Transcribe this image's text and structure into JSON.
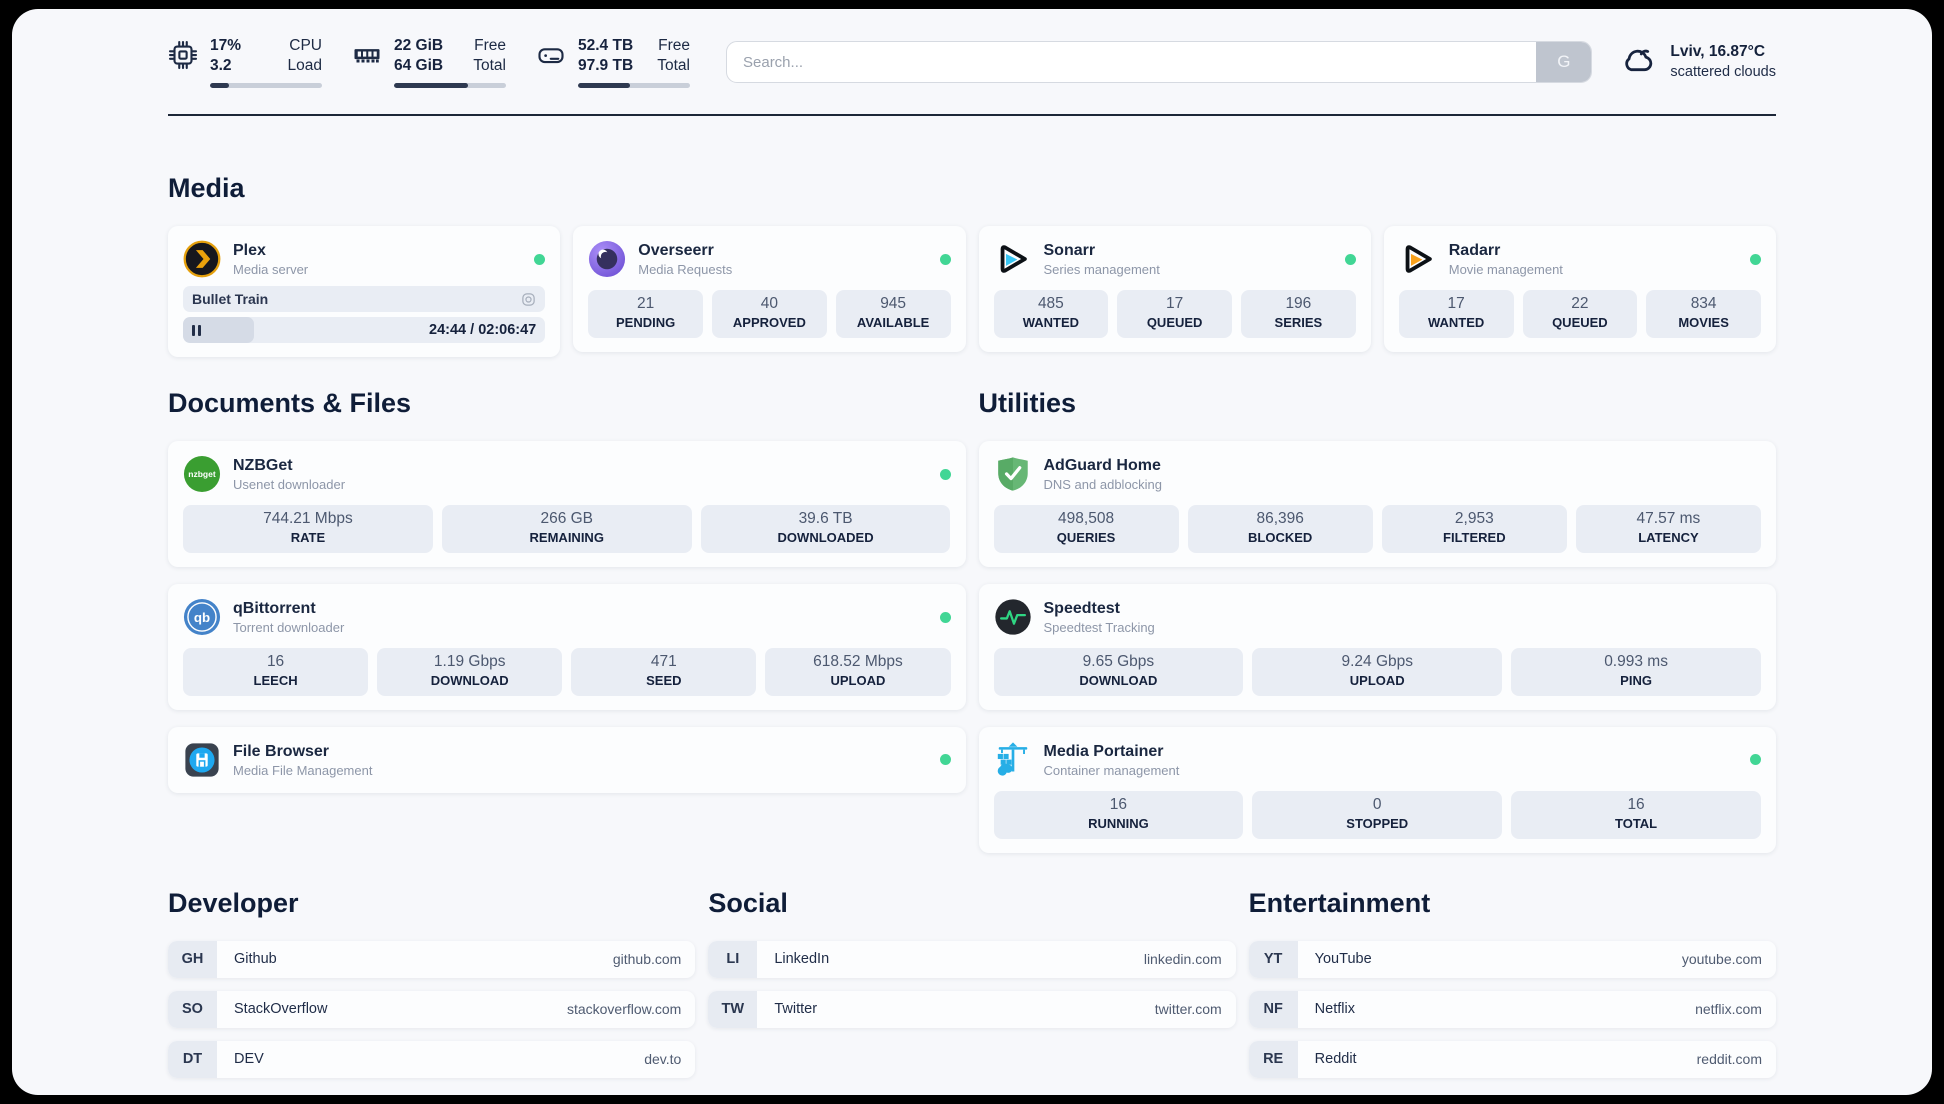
{
  "topbar": {
    "stats": [
      {
        "icon": "cpu-icon",
        "line1": "17%",
        "line2": "3.2",
        "label1": "CPU",
        "label2": "Load",
        "progress_percent": 17
      },
      {
        "icon": "ram-icon",
        "line1": "22 GiB",
        "line2": "64 GiB",
        "label1": "Free",
        "label2": "Total",
        "progress_percent": 66
      },
      {
        "icon": "disk-icon",
        "line1": "52.4 TB",
        "line2": "97.9 TB",
        "label1": "Free",
        "label2": "Total",
        "progress_percent": 46
      }
    ],
    "search": {
      "placeholder": "Search...",
      "button_label": "G"
    },
    "weather": {
      "icon": "cloud-icon",
      "location": "Lviv, 16.87°C",
      "condition": "scattered clouds"
    }
  },
  "sections": {
    "media": {
      "title": "Media",
      "cards": [
        {
          "id": "plex",
          "icon": "plex-icon",
          "name": "Plex",
          "desc": "Media server",
          "online": true,
          "media_player": {
            "title": "Bullet Train",
            "time": "24:44 / 02:06:47",
            "progress_percent": 19.5
          }
        },
        {
          "id": "overseerr",
          "icon": "overseerr-icon",
          "name": "Overseerr",
          "desc": "Media Requests",
          "online": true,
          "stats": [
            {
              "value": "21",
              "label": "PENDING"
            },
            {
              "value": "40",
              "label": "APPROVED"
            },
            {
              "value": "945",
              "label": "AVAILABLE"
            }
          ]
        },
        {
          "id": "sonarr",
          "icon": "sonarr-icon",
          "name": "Sonarr",
          "desc": "Series management",
          "online": true,
          "stats": [
            {
              "value": "485",
              "label": "WANTED"
            },
            {
              "value": "17",
              "label": "QUEUED"
            },
            {
              "value": "196",
              "label": "SERIES"
            }
          ]
        },
        {
          "id": "radarr",
          "icon": "radarr-icon",
          "name": "Radarr",
          "desc": "Movie management",
          "online": true,
          "stats": [
            {
              "value": "17",
              "label": "WANTED"
            },
            {
              "value": "22",
              "label": "QUEUED"
            },
            {
              "value": "834",
              "label": "MOVIES"
            }
          ]
        }
      ]
    },
    "documents": {
      "title": "Documents & Files",
      "cards": [
        {
          "id": "nzbget",
          "icon": "nzbget-icon",
          "name": "NZBGet",
          "desc": "Usenet downloader",
          "online": true,
          "stats": [
            {
              "value": "744.21 Mbps",
              "label": "RATE"
            },
            {
              "value": "266 GB",
              "label": "REMAINING"
            },
            {
              "value": "39.6 TB",
              "label": "DOWNLOADED"
            }
          ]
        },
        {
          "id": "qbittorrent",
          "icon": "qbittorrent-icon",
          "name": "qBittorrent",
          "desc": "Torrent downloader",
          "online": true,
          "stats": [
            {
              "value": "16",
              "label": "LEECH"
            },
            {
              "value": "1.19 Gbps",
              "label": "DOWNLOAD"
            },
            {
              "value": "471",
              "label": "SEED"
            },
            {
              "value": "618.52 Mbps",
              "label": "UPLOAD"
            }
          ]
        },
        {
          "id": "filebrowser",
          "icon": "filebrowser-icon",
          "name": "File Browser",
          "desc": "Media File Management",
          "online": true
        }
      ]
    },
    "utilities": {
      "title": "Utilities",
      "cards": [
        {
          "id": "adguard",
          "icon": "adguard-icon",
          "name": "AdGuard Home",
          "desc": "DNS and adblocking",
          "online": false,
          "stats": [
            {
              "value": "498,508",
              "label": "QUERIES"
            },
            {
              "value": "86,396",
              "label": "BLOCKED"
            },
            {
              "value": "2,953",
              "label": "FILTERED"
            },
            {
              "value": "47.57 ms",
              "label": "LATENCY"
            }
          ]
        },
        {
          "id": "speedtest",
          "icon": "speedtest-icon",
          "name": "Speedtest",
          "desc": "Speedtest Tracking",
          "online": false,
          "stats": [
            {
              "value": "9.65 Gbps",
              "label": "DOWNLOAD"
            },
            {
              "value": "9.24 Gbps",
              "label": "UPLOAD"
            },
            {
              "value": "0.993 ms",
              "label": "PING"
            }
          ]
        },
        {
          "id": "portainer",
          "icon": "portainer-icon",
          "name": "Media Portainer",
          "desc": "Container management",
          "online": true,
          "stats": [
            {
              "value": "16",
              "label": "RUNNING"
            },
            {
              "value": "0",
              "label": "STOPPED"
            },
            {
              "value": "16",
              "label": "TOTAL"
            }
          ]
        }
      ]
    }
  },
  "link_sections": [
    {
      "title": "Developer",
      "links": [
        {
          "badge": "GH",
          "name": "Github",
          "url": "github.com"
        },
        {
          "badge": "SO",
          "name": "StackOverflow",
          "url": "stackoverflow.com"
        },
        {
          "badge": "DT",
          "name": "DEV",
          "url": "dev.to"
        }
      ]
    },
    {
      "title": "Social",
      "links": [
        {
          "badge": "LI",
          "name": "LinkedIn",
          "url": "linkedin.com"
        },
        {
          "badge": "TW",
          "name": "Twitter",
          "url": "twitter.com"
        }
      ]
    },
    {
      "title": "Entertainment",
      "links": [
        {
          "badge": "YT",
          "name": "YouTube",
          "url": "youtube.com"
        },
        {
          "badge": "NF",
          "name": "Netflix",
          "url": "netflix.com"
        },
        {
          "badge": "RE",
          "name": "Reddit",
          "url": "reddit.com"
        }
      ]
    }
  ],
  "colors": {
    "status_online": "#41d695",
    "page_bg": "#f7f8fb",
    "card_bg": "#fcfdfe",
    "tile_bg": "#e9edf4",
    "heading_text": "#0f1d38",
    "plex_ring": "#e5a00d"
  }
}
